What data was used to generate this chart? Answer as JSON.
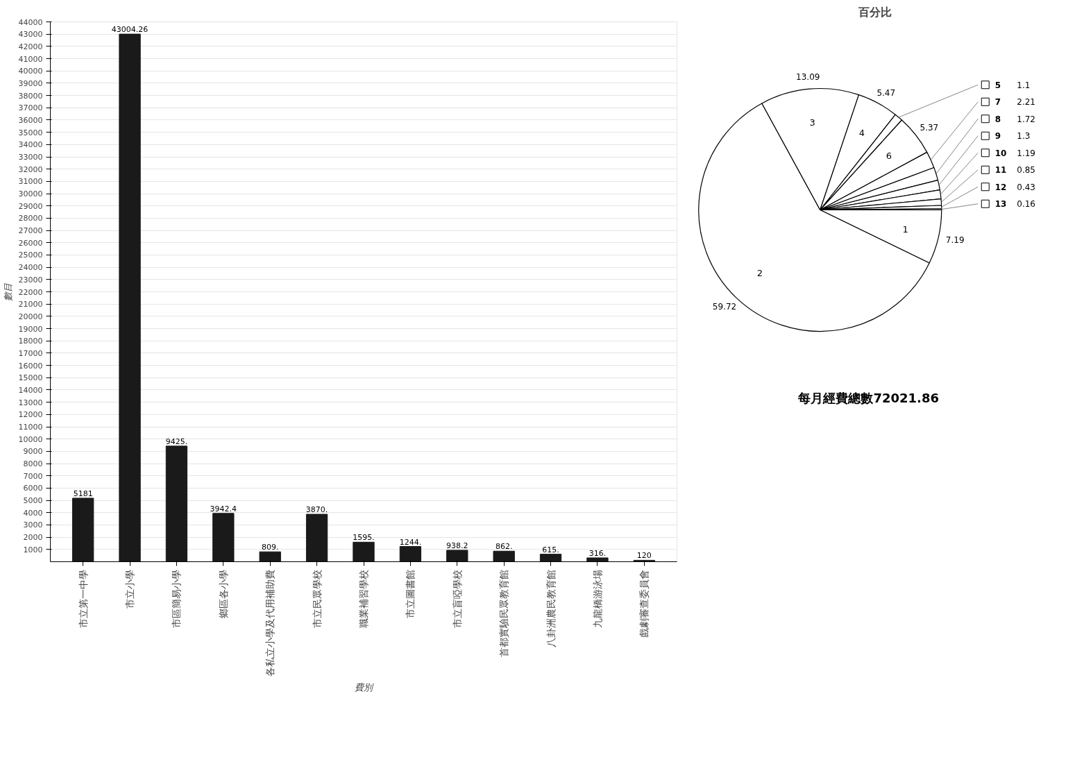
{
  "chart_data": [
    {
      "type": "bar",
      "xlabel": "費別",
      "ylabel": "數目",
      "categories": [
        "市立第一中學",
        "市立小學",
        "市區簡易小學",
        "鄉區各小學",
        "各私立小學及代用補助費",
        "市立民眾學校",
        "職業補習學校",
        "市立圖書館",
        "市立盲啞學校",
        "首都實驗民眾教育館",
        "八卦洲農民教育館",
        "九龍橋游泳場",
        "戲劇審查委員會"
      ],
      "values": [
        5181,
        43004.26,
        9425,
        3942.4,
        809,
        3870,
        1595,
        1244,
        938.2,
        862,
        615,
        316,
        120
      ],
      "value_labels": [
        "5181",
        "43004.26",
        "9425.",
        "3942.4",
        "809.",
        "3870.",
        "1595.",
        "1244.",
        "938.2",
        "862.",
        "615.",
        "316.",
        "120"
      ],
      "color": "#1a1a1a",
      "ylim": [
        0,
        44000
      ],
      "yticks": [
        1000,
        2000,
        3000,
        4000,
        5000,
        6000,
        7000,
        8000,
        9000,
        10000,
        11000,
        12000,
        13000,
        14000,
        15000,
        16000,
        17000,
        18000,
        19000,
        20000,
        21000,
        22000,
        23000,
        24000,
        25000,
        26000,
        27000,
        28000,
        29000,
        30000,
        31000,
        32000,
        33000,
        34000,
        35000,
        36000,
        37000,
        38000,
        39000,
        40000,
        41000,
        42000,
        43000,
        44000
      ],
      "grid": "y"
    },
    {
      "type": "pie",
      "title": "百分比",
      "categories": [
        "1",
        "2",
        "3",
        "4",
        "5",
        "6",
        "7",
        "8",
        "9",
        "10",
        "11",
        "12",
        "13"
      ],
      "values": [
        7.19,
        59.72,
        13.09,
        5.47,
        1.1,
        5.37,
        2.21,
        1.72,
        1.3,
        1.19,
        0.85,
        0.43,
        0.16
      ],
      "value_labels": [
        "7.19",
        "59.72",
        "13.09",
        "5.47",
        "1.1",
        "5.37",
        "2.21",
        "1.72",
        "1.3",
        "1.19",
        "0.85",
        "0.43",
        "0.16"
      ],
      "colors": [
        "#ffffff",
        "#ffffff",
        "#ffffff",
        "#ffffff",
        "#ffffff",
        "#ffffff",
        "#ffffff",
        "#ffffff",
        "#ffffff",
        "#ffffff",
        "#ffffff",
        "#ffffff",
        "#ffffff"
      ],
      "legend": "right",
      "annotations": [
        "每月經費總數72021.86"
      ]
    }
  ]
}
